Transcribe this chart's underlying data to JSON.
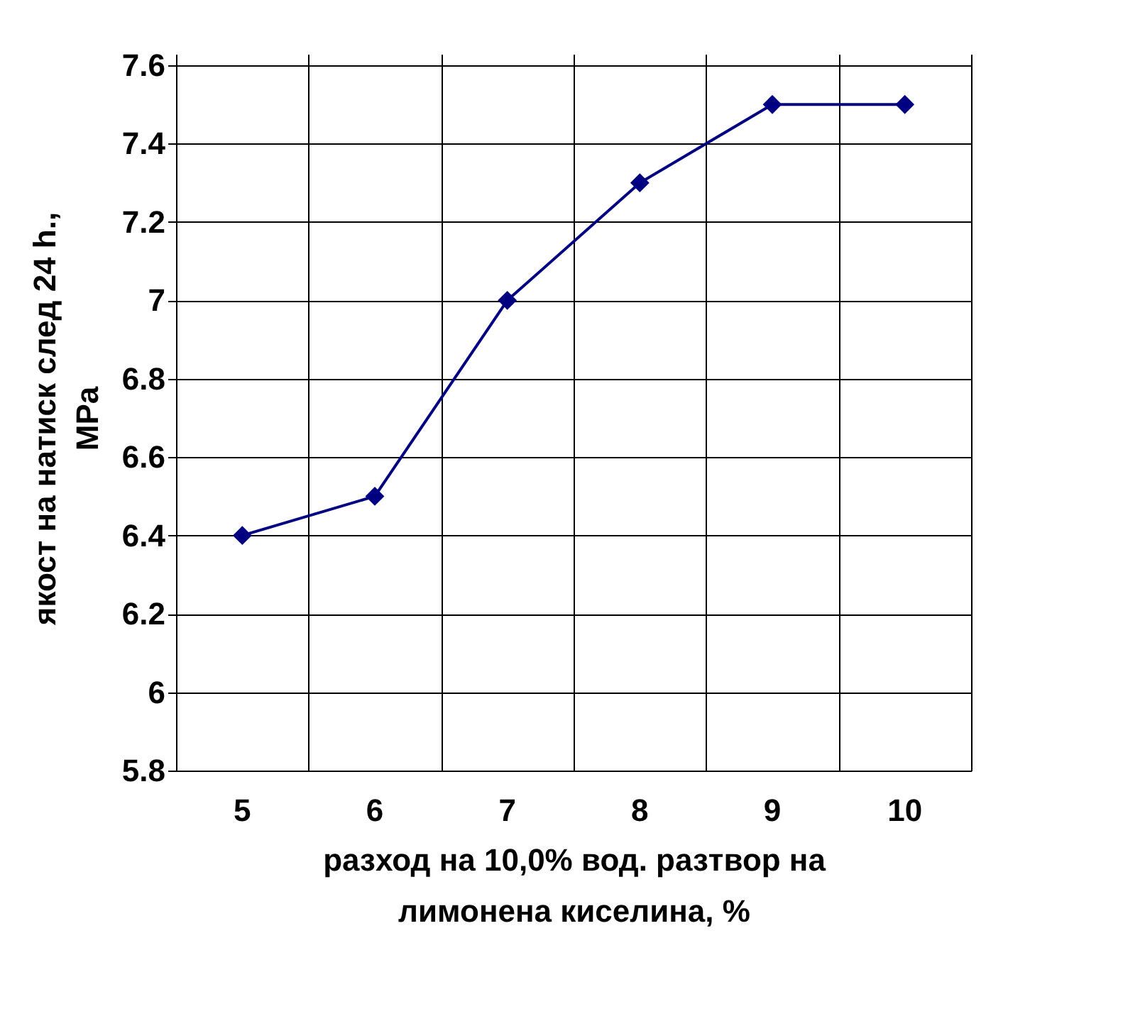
{
  "chart_data": {
    "type": "line",
    "xlabel": "разход на 10,0% вод. разтвор на\nлимонена киселина, %",
    "ylabel": "якост на натиск след 24 h.,\nMPa",
    "categories": [
      "5",
      "6",
      "7",
      "8",
      "9",
      "10"
    ],
    "series": [
      {
        "color": "#000080",
        "values": [
          6.4,
          6.5,
          7.0,
          7.3,
          7.5,
          7.5
        ]
      }
    ],
    "ylim": [
      5.8,
      7.6
    ],
    "yticks": [
      5.8,
      6,
      6.2,
      6.4,
      6.6,
      6.8,
      7,
      7.2,
      7.4,
      7.6
    ],
    "grid": true,
    "legend": false,
    "marker": "diamond",
    "line_style": "solid"
  }
}
